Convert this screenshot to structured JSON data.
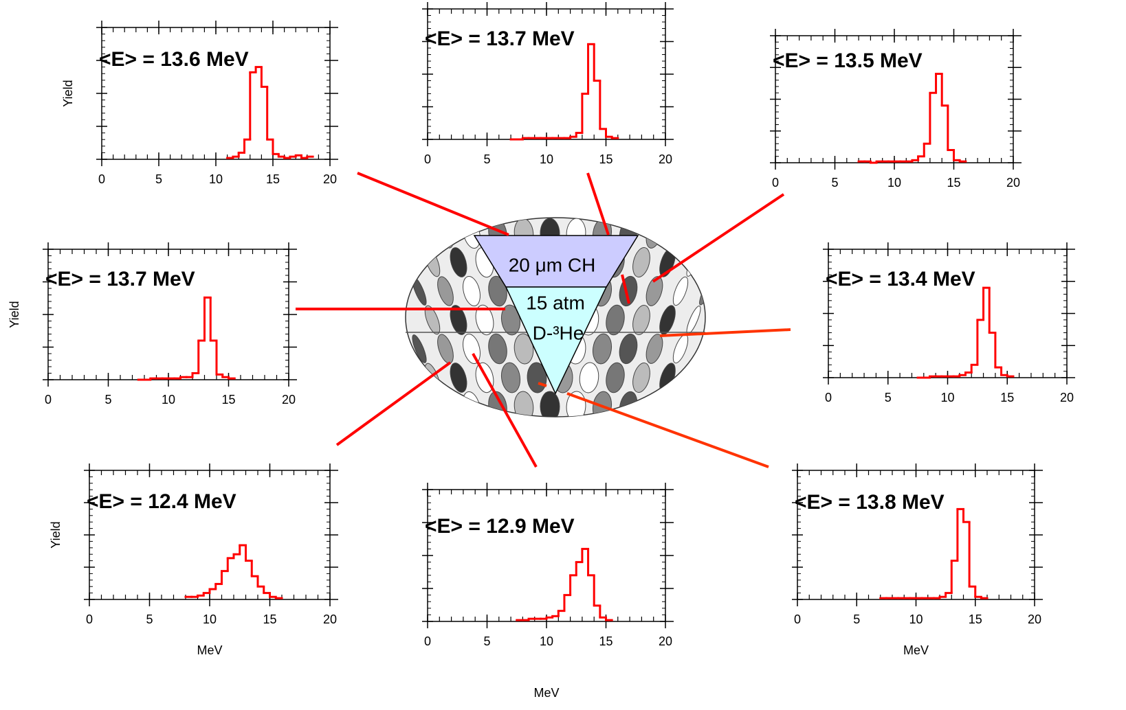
{
  "chart_data": [
    {
      "type": "histogram",
      "title": "<E> = 13.6 MeV",
      "ylabel": "Yield",
      "color": "#ff0000",
      "bins": [
        11,
        11.5,
        12,
        12.5,
        13,
        13.5,
        14,
        14.5,
        15,
        15.5,
        16,
        16.5,
        17,
        17.5,
        18,
        18.5
      ],
      "values": [
        0.01,
        0.02,
        0.05,
        0.15,
        0.66,
        0.7,
        0.55,
        0.15,
        0.04,
        0.02,
        0.01,
        0.02,
        0.03,
        0.01,
        0.02
      ],
      "xlim": [
        0,
        20
      ],
      "xticks": [
        0,
        5,
        10,
        15,
        20
      ],
      "ylim": [
        0,
        1
      ],
      "yticks": [
        0,
        0.25,
        0.5,
        0.75,
        1
      ]
    },
    {
      "type": "histogram",
      "title": "<E> = 13.7 MeV",
      "color": "#ff0000",
      "bins": [
        7,
        7.5,
        8,
        8.5,
        9,
        9.5,
        10,
        10.5,
        11,
        11.5,
        12,
        12.5,
        13,
        13.5,
        14,
        14.5,
        15,
        15.5,
        16
      ],
      "values": [
        0,
        0,
        0.01,
        0.01,
        0.01,
        0.01,
        0.01,
        0.01,
        0.01,
        0.01,
        0.02,
        0.05,
        0.35,
        0.73,
        0.45,
        0.08,
        0.02,
        0.01
      ],
      "xlim": [
        0,
        20
      ],
      "xticks": [
        0,
        5,
        10,
        15,
        20
      ],
      "ylim": [
        0,
        1
      ],
      "yticks": [
        0,
        0.25,
        0.5,
        0.75,
        1
      ]
    },
    {
      "type": "histogram",
      "title": "<E> = 13.5 MeV",
      "color": "#ff0000",
      "bins": [
        7,
        7.5,
        8,
        8.5,
        9,
        9.5,
        10,
        10.5,
        11,
        11.5,
        12,
        12.5,
        13,
        13.5,
        14,
        14.5,
        15,
        15.5,
        16
      ],
      "values": [
        0.01,
        0.01,
        0,
        0.01,
        0.01,
        0.01,
        0.01,
        0.01,
        0.01,
        0.02,
        0.05,
        0.15,
        0.55,
        0.7,
        0.45,
        0.1,
        0.02,
        0.01
      ],
      "xlim": [
        0,
        20
      ],
      "xticks": [
        0,
        5,
        10,
        15,
        20
      ],
      "ylim": [
        0,
        1
      ],
      "yticks": [
        0,
        0.25,
        0.5,
        0.75,
        1
      ]
    },
    {
      "type": "histogram",
      "title": "<E> = 13.7 MeV",
      "ylabel": "Yield",
      "color": "#ff0000",
      "bins": [
        7.5,
        8,
        8.5,
        9,
        9.5,
        10,
        10.5,
        11,
        11.5,
        12,
        12.5,
        13,
        13.5,
        14,
        14.5,
        15,
        15.5
      ],
      "values": [
        0,
        0,
        0.01,
        0.01,
        0.01,
        0.01,
        0.01,
        0.02,
        0.02,
        0.05,
        0.3,
        0.63,
        0.3,
        0.04,
        0.02,
        0.01
      ],
      "xlim": [
        0,
        20
      ],
      "xticks": [
        0,
        5,
        10,
        15,
        20
      ],
      "ylim": [
        0,
        1
      ],
      "yticks": [
        0,
        0.25,
        0.5,
        0.75,
        1
      ]
    },
    {
      "type": "histogram",
      "title": "<E> = 13.4 MeV",
      "color": "#ff0000",
      "bins": [
        7.5,
        8,
        8.5,
        9,
        9.5,
        10,
        10.5,
        11,
        11.5,
        12,
        12.5,
        13,
        13.5,
        14,
        14.5,
        15,
        15.5
      ],
      "values": [
        0,
        0,
        0.01,
        0.01,
        0.01,
        0.01,
        0.01,
        0.02,
        0.04,
        0.1,
        0.45,
        0.7,
        0.35,
        0.08,
        0.02,
        0.01
      ],
      "xlim": [
        0,
        20
      ],
      "xticks": [
        0,
        5,
        10,
        15,
        20
      ],
      "ylim": [
        0,
        1
      ],
      "yticks": [
        0,
        0.25,
        0.5,
        0.75,
        1
      ]
    },
    {
      "type": "histogram",
      "title": "<E> = 12.4 MeV",
      "xlabel": "MeV",
      "ylabel": "Yield",
      "color": "#ff0000",
      "bins": [
        8,
        8.5,
        9,
        9.5,
        10,
        10.5,
        11,
        11.5,
        12,
        12.5,
        13,
        13.5,
        14,
        14.5,
        15,
        15.5,
        16
      ],
      "values": [
        0.02,
        0.02,
        0.03,
        0.05,
        0.08,
        0.12,
        0.22,
        0.32,
        0.35,
        0.42,
        0.3,
        0.18,
        0.1,
        0.05,
        0.02,
        0.01
      ],
      "xlim": [
        0,
        20
      ],
      "xticks": [
        0,
        5,
        10,
        15,
        20
      ],
      "ylim": [
        0,
        1
      ],
      "yticks": [
        0,
        0.25,
        0.5,
        0.75,
        1
      ]
    },
    {
      "type": "histogram",
      "title": "<E> = 12.9 MeV",
      "xlabel": "MeV",
      "color": "#ff0000",
      "bins": [
        7.5,
        8,
        8.5,
        9,
        9.5,
        10,
        10.5,
        11,
        11.5,
        12,
        12.5,
        13,
        13.5,
        14,
        14.5,
        15,
        15.5
      ],
      "values": [
        0.01,
        0.01,
        0.02,
        0.02,
        0.02,
        0.03,
        0.04,
        0.08,
        0.2,
        0.35,
        0.45,
        0.55,
        0.35,
        0.12,
        0.03,
        0.01
      ],
      "xlim": [
        0,
        20
      ],
      "xticks": [
        0,
        5,
        10,
        15,
        20
      ],
      "ylim": [
        0,
        1
      ],
      "yticks": [
        0,
        0.25,
        0.5,
        0.75,
        1
      ]
    },
    {
      "type": "histogram",
      "title": "<E> = 13.8 MeV",
      "xlabel": "MeV",
      "color": "#ff0000",
      "bins": [
        7,
        7.5,
        8,
        8.5,
        9,
        9.5,
        10,
        10.5,
        11,
        11.5,
        12,
        12.5,
        13,
        13.5,
        14,
        14.5,
        15,
        15.5,
        16
      ],
      "values": [
        0.01,
        0.01,
        0.01,
        0.01,
        0.01,
        0.01,
        0.01,
        0.01,
        0.01,
        0.01,
        0.02,
        0.05,
        0.3,
        0.7,
        0.6,
        0.1,
        0.02,
        0.01
      ],
      "xlim": [
        0,
        20
      ],
      "xticks": [
        0,
        5,
        10,
        15,
        20
      ],
      "ylim": [
        0,
        1
      ],
      "yticks": [
        0,
        0.25,
        0.5,
        0.75,
        1
      ]
    }
  ],
  "diagram": {
    "labels": [
      "20 μm CH",
      "15 atm",
      "D-³He"
    ]
  }
}
